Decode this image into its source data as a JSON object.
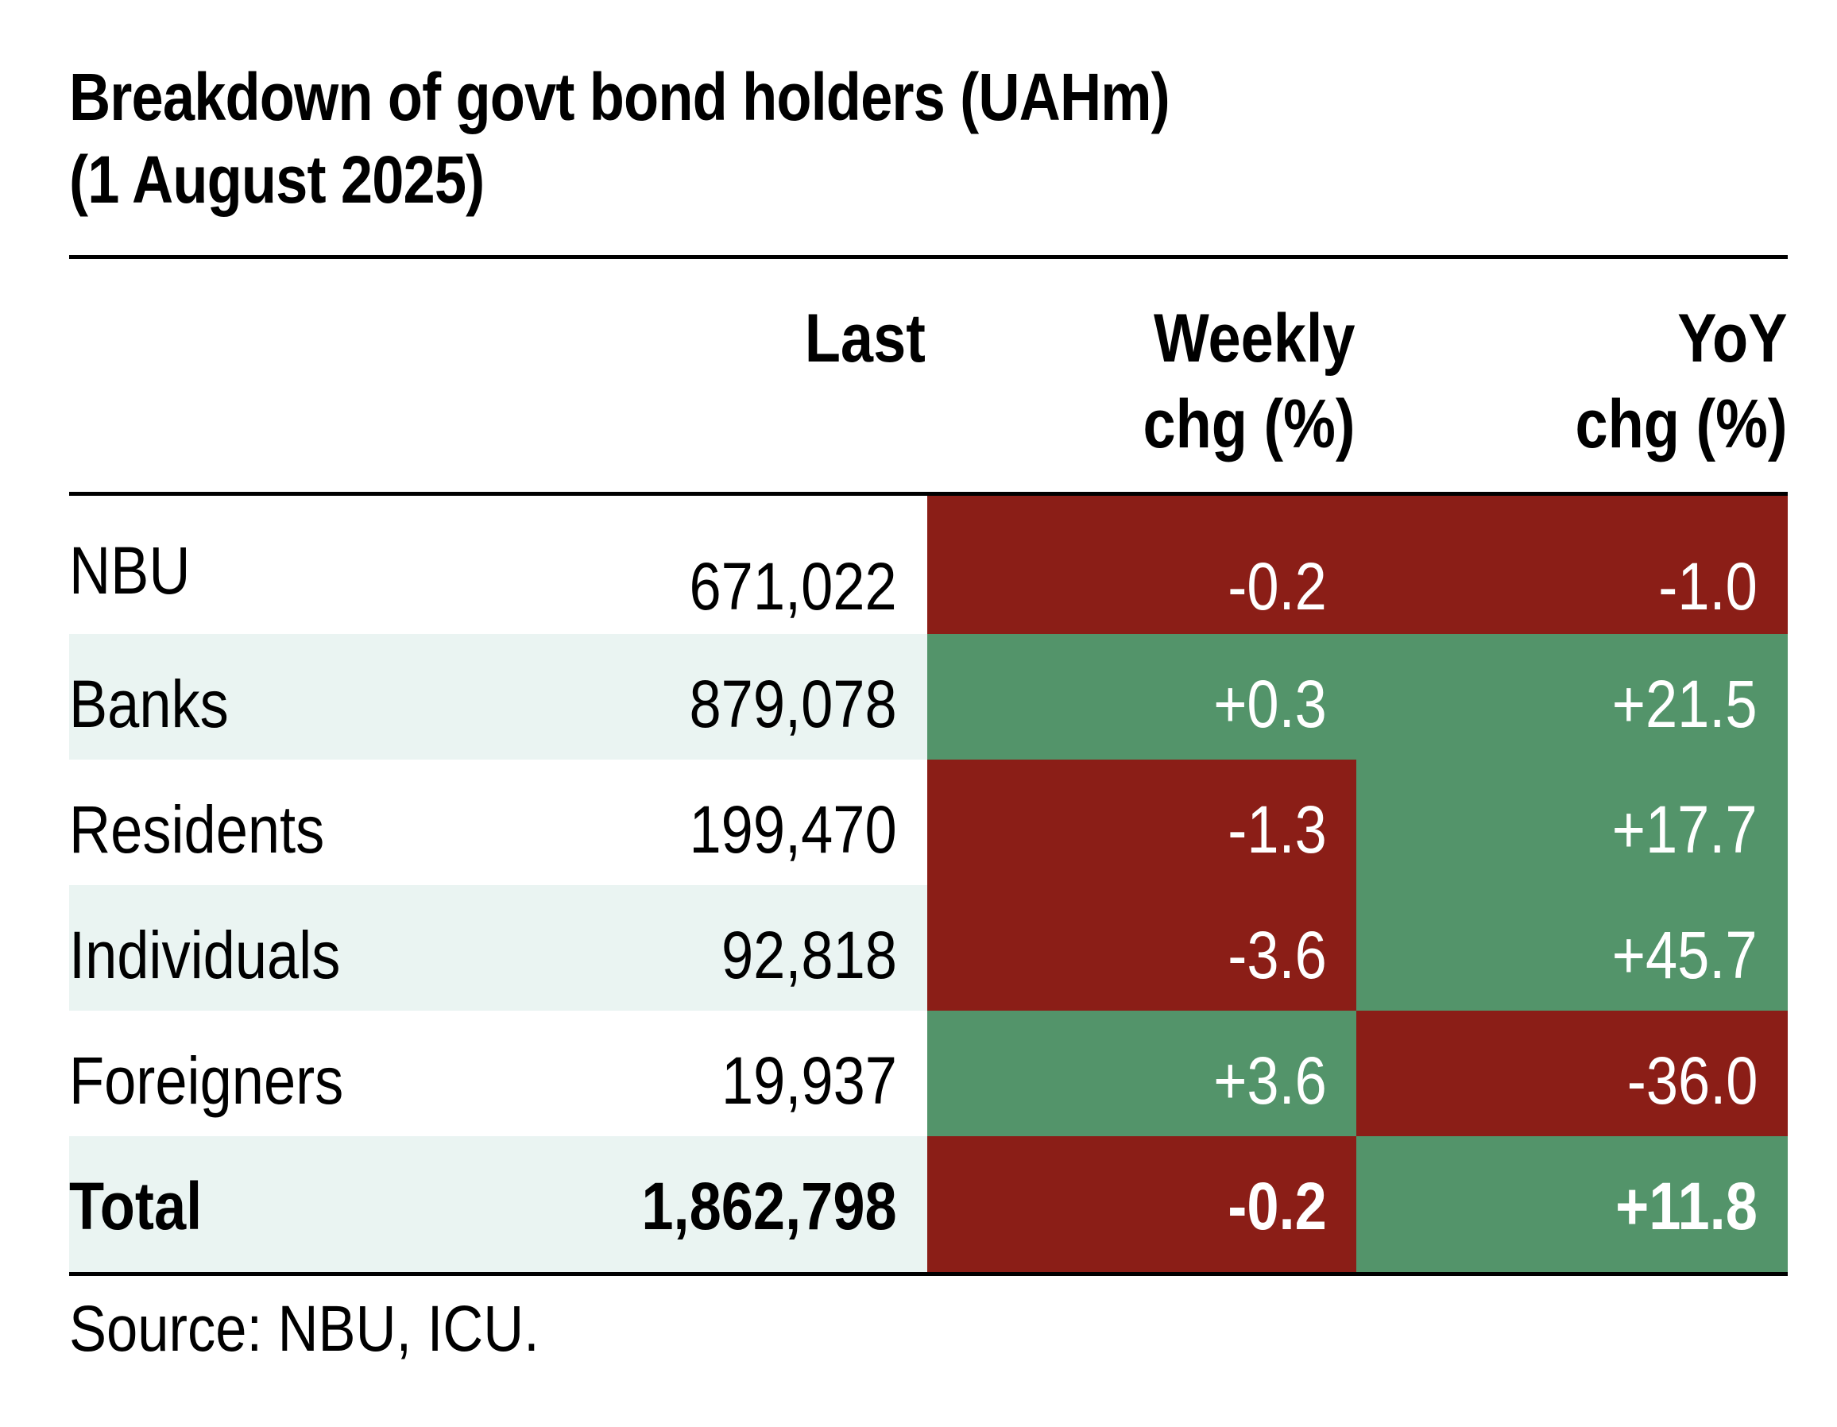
{
  "chart_data": {
    "type": "table",
    "title_line1": "Breakdown of govt bond holders (UAHm)",
    "title_line2": "(1 August 2025)",
    "columns": {
      "last": "Last",
      "weekly_line1": "Weekly",
      "weekly_line2": "chg (%)",
      "yoy_line1": "YoY",
      "yoy_line2": "chg (%)"
    },
    "rows": [
      {
        "label": "NBU",
        "last": "671,022",
        "weekly": "-0.2",
        "yoy": "-1.0",
        "weekly_value": -0.2,
        "yoy_value": -1.0
      },
      {
        "label": "Banks",
        "last": "879,078",
        "weekly": "+0.3",
        "yoy": "+21.5",
        "weekly_value": 0.3,
        "yoy_value": 21.5
      },
      {
        "label": "Residents",
        "last": "199,470",
        "weekly": "-1.3",
        "yoy": "+17.7",
        "weekly_value": -1.3,
        "yoy_value": 17.7
      },
      {
        "label": "Individuals",
        "last": "92,818",
        "weekly": "-3.6",
        "yoy": "+45.7",
        "weekly_value": -3.6,
        "yoy_value": 45.7
      },
      {
        "label": "Foreigners",
        "last": "19,937",
        "weekly": "+3.6",
        "yoy": "-36.0",
        "weekly_value": 3.6,
        "yoy_value": -36.0
      },
      {
        "label": "Total",
        "last": "1,862,798",
        "weekly": "-0.2",
        "yoy": "+11.8",
        "weekly_value": -0.2,
        "yoy_value": 11.8,
        "bold": true
      }
    ],
    "source": "Source: NBU, ICU.",
    "colors": {
      "negative": "#8b1e17",
      "positive": "#53946a",
      "alt_row": "#eaf4f2"
    }
  }
}
